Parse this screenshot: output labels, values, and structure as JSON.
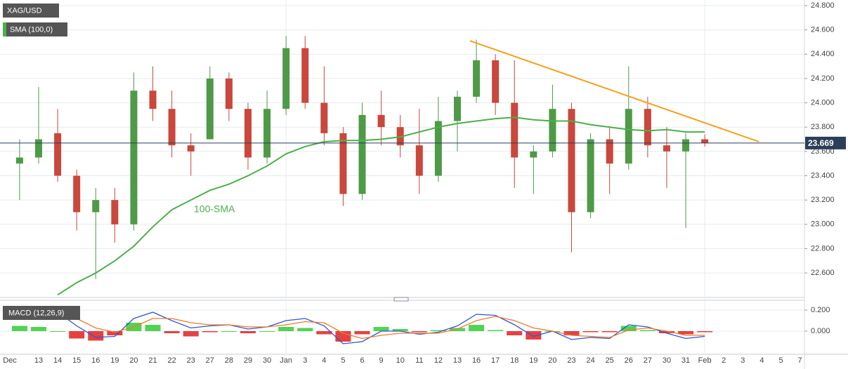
{
  "chart_data": [
    {
      "type": "candlestick",
      "name": "XAG/USD",
      "categories": [
        "Dec",
        "13",
        "14",
        "15",
        "16",
        "19",
        "20",
        "21",
        "22",
        "23",
        "27",
        "28",
        "29",
        "30",
        "Jan",
        "3",
        "4",
        "5",
        "6",
        "9",
        "10",
        "11",
        "12",
        "13",
        "16",
        "17",
        "18",
        "19",
        "20",
        "23",
        "24",
        "25",
        "26",
        "27",
        "30",
        "31",
        "Feb",
        "2",
        "3",
        "4",
        "5",
        "7"
      ],
      "open": [
        23.5,
        23.55,
        23.75,
        23.4,
        23.1,
        23.2,
        23.0,
        24.1,
        23.95,
        23.65,
        23.7,
        24.2,
        23.95,
        23.55,
        23.95,
        24.45,
        24.0,
        23.75,
        23.25,
        23.9,
        23.8,
        23.65,
        23.4,
        23.85,
        24.05,
        24.35,
        24.0,
        23.55,
        23.6,
        23.95,
        23.1,
        23.7,
        23.5,
        23.95,
        23.65,
        23.6,
        23.7,
        null,
        null,
        null,
        null,
        null
      ],
      "high": [
        23.7,
        24.13,
        23.95,
        23.45,
        23.3,
        23.3,
        24.25,
        24.3,
        24.1,
        23.75,
        24.3,
        24.25,
        24.0,
        24.1,
        24.55,
        24.55,
        24.3,
        23.8,
        24.0,
        24.1,
        23.9,
        23.95,
        24.05,
        24.1,
        24.52,
        24.4,
        24.35,
        23.65,
        24.15,
        24.0,
        23.75,
        23.8,
        24.3,
        24.05,
        23.8,
        23.75,
        23.74,
        null,
        null,
        null,
        null,
        null
      ],
      "low": [
        23.2,
        23.5,
        23.35,
        22.95,
        22.55,
        22.85,
        22.95,
        23.85,
        23.55,
        23.4,
        23.7,
        23.85,
        23.45,
        23.5,
        23.9,
        23.95,
        23.65,
        23.15,
        23.2,
        23.65,
        23.55,
        23.25,
        23.35,
        23.6,
        24.0,
        23.9,
        23.3,
        23.25,
        23.55,
        22.77,
        23.05,
        23.25,
        23.45,
        23.55,
        23.3,
        22.97,
        23.64,
        null,
        null,
        null,
        null,
        null
      ],
      "close": [
        23.55,
        23.7,
        23.4,
        23.1,
        23.2,
        23.0,
        24.1,
        23.95,
        23.65,
        23.6,
        24.2,
        23.95,
        23.55,
        23.95,
        24.45,
        24.0,
        23.75,
        23.25,
        23.9,
        23.8,
        23.65,
        23.4,
        23.85,
        24.05,
        24.35,
        24.0,
        23.55,
        23.6,
        23.95,
        23.1,
        23.7,
        23.5,
        23.95,
        23.65,
        23.6,
        23.7,
        23.669,
        null,
        null,
        null,
        null,
        null
      ],
      "up_color": "#4e9a47",
      "down_color": "#c9473c",
      "last": 23.669,
      "series": [
        {
          "name": "SMA (100,0)",
          "color": "#4cb04a",
          "values": [
            null,
            null,
            22.42,
            22.52,
            22.6,
            22.7,
            22.82,
            22.98,
            23.12,
            23.2,
            23.28,
            23.33,
            23.4,
            23.48,
            23.58,
            23.64,
            23.68,
            23.69,
            23.69,
            23.7,
            23.72,
            23.76,
            23.8,
            23.83,
            23.85,
            23.87,
            23.88,
            23.86,
            23.85,
            23.85,
            23.82,
            23.8,
            23.78,
            23.77,
            23.78,
            23.76,
            23.76,
            null,
            null,
            null,
            null,
            null
          ]
        }
      ],
      "annotation": "100-SMA",
      "trendline": {
        "color": "#f5a01a",
        "values": [
          24.51,
          23.68
        ]
      },
      "ylim": [
        22.41,
        24.846
      ],
      "yticks": [
        {
          "value": 22.6,
          "label": "22.600"
        },
        {
          "value": 22.8,
          "label": "22.800"
        },
        {
          "value": 23.0,
          "label": "23.000"
        },
        {
          "value": 23.2,
          "label": "23.200"
        },
        {
          "value": 23.4,
          "label": "23.400"
        },
        {
          "value": 23.6,
          "label": "23.600"
        },
        {
          "value": 23.8,
          "label": "23.800"
        },
        {
          "value": 24.0,
          "label": "24.000"
        },
        {
          "value": 24.2,
          "label": "24.200"
        },
        {
          "value": 24.4,
          "label": "24.400"
        },
        {
          "value": 24.6,
          "label": "24.600"
        },
        {
          "value": 24.8,
          "label": "24.800"
        }
      ],
      "grid": true
    },
    {
      "type": "macd",
      "name": "MACD (12,26,9)",
      "series": [
        {
          "color": "#2f55d4",
          "values": [
            0.2,
            0.22,
            0.18,
            0.05,
            -0.06,
            -0.05,
            0.12,
            0.18,
            0.1,
            0.03,
            0.05,
            0.06,
            0.02,
            0.04,
            0.1,
            0.12,
            0.05,
            -0.12,
            -0.1,
            0.0,
            0.0,
            -0.03,
            -0.01,
            0.05,
            0.16,
            0.15,
            0.06,
            -0.05,
            0.0,
            -0.08,
            -0.06,
            -0.07,
            0.06,
            0.04,
            -0.02,
            -0.07,
            -0.05,
            null,
            null,
            null,
            null,
            null
          ]
        },
        {
          "color": "#f07b2a",
          "values": [
            0.15,
            0.18,
            0.18,
            0.12,
            0.03,
            -0.01,
            0.04,
            0.12,
            0.12,
            0.08,
            0.06,
            0.06,
            0.04,
            0.04,
            0.06,
            0.09,
            0.08,
            -0.02,
            -0.07,
            -0.04,
            -0.02,
            -0.02,
            -0.02,
            0.02,
            0.1,
            0.14,
            0.1,
            0.03,
            0.0,
            -0.04,
            -0.05,
            -0.06,
            0.01,
            0.03,
            0.0,
            -0.04,
            -0.04,
            null,
            null,
            null,
            null,
            null
          ]
        }
      ],
      "histogram": [
        0.05,
        0.04,
        0.0,
        -0.07,
        -0.09,
        -0.04,
        0.08,
        0.06,
        -0.02,
        -0.05,
        -0.01,
        0.0,
        -0.02,
        0.0,
        0.04,
        0.03,
        -0.03,
        -0.1,
        -0.03,
        0.04,
        0.02,
        -0.01,
        0.01,
        0.03,
        0.06,
        0.01,
        -0.04,
        -0.08,
        0.0,
        -0.04,
        -0.01,
        -0.01,
        0.05,
        0.01,
        -0.02,
        -0.03,
        -0.01,
        null,
        null,
        null,
        null,
        null
      ],
      "up_color": "#33cc33",
      "down_color": "#e02020",
      "ylim": [
        -0.22,
        0.267
      ],
      "yticks": [
        {
          "value": 0.0,
          "label": "0.000"
        },
        {
          "value": 0.2,
          "label": "0.200"
        }
      ],
      "grid": true
    }
  ]
}
